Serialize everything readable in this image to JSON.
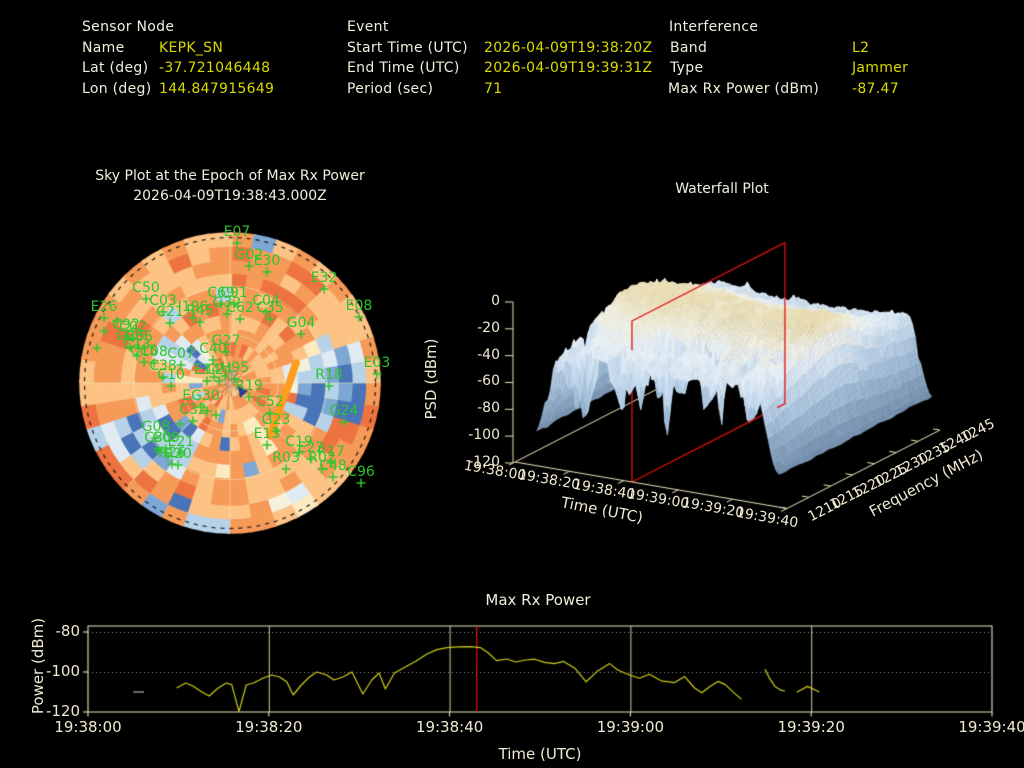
{
  "header": {
    "columns": [
      {
        "title": "Sensor Node",
        "rows": [
          [
            "Name",
            "KEPK_SN"
          ],
          [
            "Lat (deg)",
            "-37.721046448"
          ],
          [
            "Lon (deg)",
            "144.847915649"
          ]
        ]
      },
      {
        "title": "Event",
        "rows": [
          [
            "Start Time (UTC)",
            "2026-04-09T19:38:20Z"
          ],
          [
            "End Time (UTC)",
            "2026-04-09T19:39:31Z"
          ],
          [
            "Period (sec)",
            "71"
          ]
        ]
      },
      {
        "title": "Interference",
        "rows": [
          [
            "Band",
            "L2"
          ],
          [
            "Type",
            "Jammer"
          ],
          [
            "Max Rx Power (dBm)",
            "-87.47"
          ]
        ]
      }
    ]
  },
  "colors": {
    "background": "#000000",
    "label_text": "#f0eedd",
    "value_text": "#d9d900",
    "axis_frame": "#ece4bd",
    "grid_dotted": "#a9a9a9",
    "line_yellow": "#cdcd1c",
    "line_red": "#f01010",
    "satellite_green": "#2ec52e",
    "streak_orange": "#ff9d1e",
    "surface_blue": "#b8d2e8",
    "surface_cream": "#e9ddb4"
  },
  "chart_data": [
    {
      "type": "heatmap",
      "render": "polar-sky-mosaic",
      "title": "Sky Plot at the Epoch of Max Rx Power",
      "subtitle": "2026-04-09T19:38:43.000Z",
      "satellites": [
        {
          "id": "E07",
          "x": 237,
          "y": 243
        },
        {
          "id": "G02",
          "x": 249,
          "y": 266
        },
        {
          "id": "E30",
          "x": 267,
          "y": 272
        },
        {
          "id": "E32",
          "x": 324,
          "y": 289
        },
        {
          "id": "E08",
          "x": 359,
          "y": 317
        },
        {
          "id": "C04",
          "x": 266,
          "y": 312
        },
        {
          "id": "C35",
          "x": 270,
          "y": 319
        },
        {
          "id": "G04",
          "x": 301,
          "y": 334
        },
        {
          "id": "E03",
          "x": 377,
          "y": 374
        },
        {
          "id": "R18",
          "x": 329,
          "y": 386
        },
        {
          "id": "G24",
          "x": 344,
          "y": 422
        },
        {
          "id": "C50",
          "x": 146,
          "y": 299
        },
        {
          "id": "C03",
          "x": 163,
          "y": 312
        },
        {
          "id": "C21",
          "x": 170,
          "y": 323
        },
        {
          "id": "I196",
          "x": 193,
          "y": 318
        },
        {
          "id": "R45",
          "x": 200,
          "y": 322
        },
        {
          "id": "C69",
          "x": 221,
          "y": 304
        },
        {
          "id": "C91",
          "x": 234,
          "y": 304
        },
        {
          "id": "G32",
          "x": 227,
          "y": 314
        },
        {
          "id": "C62",
          "x": 240,
          "y": 319
        },
        {
          "id": "E26",
          "x": 104,
          "y": 318
        },
        {
          "id": "C92",
          "x": 126,
          "y": 336
        },
        {
          "id": "C02",
          "x": 133,
          "y": 338
        },
        {
          "id": "C28",
          "x": 130,
          "y": 347
        },
        {
          "id": "C06",
          "x": 139,
          "y": 348
        },
        {
          "id": "C13",
          "x": 137,
          "y": 356
        },
        {
          "id": "C15",
          "x": 144,
          "y": 362
        },
        {
          "id": "C08",
          "x": 154,
          "y": 363
        },
        {
          "id": "C07",
          "x": 181,
          "y": 365
        },
        {
          "id": "C40",
          "x": 213,
          "y": 360
        },
        {
          "id": "G27",
          "x": 226,
          "y": 352
        },
        {
          "id": "C38",
          "x": 163,
          "y": 377
        },
        {
          "id": "C10",
          "x": 171,
          "y": 386
        },
        {
          "id": "E34",
          "x": 207,
          "y": 381
        },
        {
          "id": "C24",
          "x": 219,
          "y": 381
        },
        {
          "id": "H95",
          "x": 235,
          "y": 379
        },
        {
          "id": "R19",
          "x": 249,
          "y": 397
        },
        {
          "id": "EG30",
          "x": 201,
          "y": 407
        },
        {
          "id": "C32",
          "x": 193,
          "y": 421
        },
        {
          "id": "C52",
          "x": 270,
          "y": 413
        },
        {
          "id": "G23",
          "x": 276,
          "y": 431
        },
        {
          "id": "E13",
          "x": 267,
          "y": 445
        },
        {
          "id": "C19",
          "x": 299,
          "y": 453
        },
        {
          "id": "E22",
          "x": 311,
          "y": 459
        },
        {
          "id": "R17",
          "x": 331,
          "y": 463
        },
        {
          "id": "R03",
          "x": 286,
          "y": 469
        },
        {
          "id": "R02",
          "x": 322,
          "y": 469
        },
        {
          "id": "C48",
          "x": 333,
          "y": 477
        },
        {
          "id": "G08",
          "x": 156,
          "y": 438
        },
        {
          "id": "C30",
          "x": 158,
          "y": 449
        },
        {
          "id": "C09",
          "x": 166,
          "y": 449
        },
        {
          "id": "E21",
          "x": 181,
          "y": 453
        },
        {
          "id": "R26",
          "x": 172,
          "y": 464
        },
        {
          "id": "R20",
          "x": 178,
          "y": 465
        },
        {
          "id": "C96",
          "x": 361,
          "y": 483
        }
      ],
      "extra_markers": [
        [
          207,
          411
        ],
        [
          216,
          415
        ],
        [
          180,
          424
        ],
        [
          160,
          452
        ],
        [
          168,
          456
        ],
        [
          117,
          321
        ],
        [
          104,
          331
        ],
        [
          97,
          348
        ],
        [
          214,
          377
        ],
        [
          225,
          376
        ]
      ],
      "jammer_streak": [
        [
          270,
          436
        ],
        [
          277,
          416
        ],
        [
          283,
          400
        ],
        [
          290,
          381
        ],
        [
          296,
          363
        ]
      ],
      "arrow": [
        243,
        392
      ],
      "grid_rings": [
        0.333,
        0.667
      ],
      "mosaic": {
        "sectors": 40,
        "rings": 11,
        "seed": 11
      }
    },
    {
      "type": "heatmap",
      "render": "3d-surface",
      "title": "Waterfall Plot",
      "xlabel": "Time (UTC)",
      "ylabel": "Frequency (MHz)",
      "zlabel": "PSD (dBm)",
      "x_ticks": [
        "19:38:00",
        "19:38:20",
        "19:38:40",
        "19:39:00",
        "19:39:20",
        "19:39:40"
      ],
      "x_tick_sec": [
        0,
        20,
        40,
        60,
        80,
        100
      ],
      "y_ticks": [
        1210,
        1215,
        1220,
        1225,
        1230,
        1235,
        1240,
        1245
      ],
      "z_ticks": [
        0,
        -20,
        -40,
        -60,
        -80,
        -100,
        -120
      ],
      "z_range": [
        -120,
        0
      ],
      "slice_time_sec": 43,
      "surface": {
        "t_range": [
          8,
          97
        ],
        "psd_crest": -13,
        "psd_floor": -96,
        "center_freq": 1226,
        "seed": 5
      }
    },
    {
      "type": "line",
      "title": "Max Rx Power",
      "xlabel": "Time (UTC)",
      "ylabel": "Power (dBm)",
      "ylim": [
        -120,
        -77
      ],
      "yticks": [
        -80,
        -100,
        -120
      ],
      "xtick_sec": [
        0,
        20,
        40,
        60,
        80,
        100
      ],
      "xtick_labels": [
        "19:38:00",
        "19:38:20",
        "19:38:40",
        "19:39:00",
        "19:39:20",
        "19:39:40"
      ],
      "red_line_sec": 43,
      "gray_segment": [
        [
          5,
          -110
        ],
        [
          6.2,
          -110
        ]
      ],
      "segments": [
        [
          [
            9.8,
            -108
          ],
          [
            10.8,
            -105.5
          ],
          [
            11.6,
            -107
          ],
          [
            12.6,
            -110
          ],
          [
            13.4,
            -112
          ],
          [
            14.4,
            -108
          ],
          [
            15.3,
            -105.5
          ],
          [
            15.9,
            -106.3
          ],
          [
            16.7,
            -119.8
          ],
          [
            17.5,
            -106.5
          ],
          [
            18.3,
            -105.5
          ],
          [
            19.4,
            -103
          ],
          [
            20.3,
            -101.5
          ],
          [
            21.2,
            -102.5
          ],
          [
            22,
            -105
          ],
          [
            22.7,
            -111.5
          ],
          [
            23.6,
            -106.5
          ],
          [
            24.5,
            -102.5
          ],
          [
            25.3,
            -100
          ],
          [
            26.4,
            -101.5
          ],
          [
            27.2,
            -104
          ],
          [
            28.2,
            -102.5
          ],
          [
            29.2,
            -100
          ],
          [
            30.4,
            -111
          ],
          [
            31.4,
            -104
          ],
          [
            32.2,
            -100.5
          ],
          [
            32.9,
            -108.5
          ],
          [
            33.9,
            -100.5
          ],
          [
            34.9,
            -98
          ],
          [
            36.3,
            -94.5
          ],
          [
            37.5,
            -91
          ],
          [
            38.6,
            -88.8
          ],
          [
            39.7,
            -87.8
          ],
          [
            41,
            -87.4
          ],
          [
            42.3,
            -87.3
          ],
          [
            43.4,
            -87.8
          ],
          [
            44.3,
            -90.5
          ],
          [
            45.2,
            -94.3
          ],
          [
            46.3,
            -93.5
          ],
          [
            47.3,
            -95
          ],
          [
            48.4,
            -94
          ],
          [
            49.4,
            -93.6
          ],
          [
            50.5,
            -95.2
          ],
          [
            51.6,
            -95.8
          ],
          [
            52.6,
            -94.7
          ],
          [
            53.9,
            -98.3
          ],
          [
            55.1,
            -104.9
          ],
          [
            56.3,
            -99.8
          ],
          [
            57.7,
            -95.8
          ],
          [
            58.6,
            -99
          ],
          [
            59.9,
            -101.5
          ],
          [
            61,
            -103.1
          ],
          [
            62.1,
            -101.1
          ],
          [
            63.4,
            -104.4
          ],
          [
            64.9,
            -105.3
          ],
          [
            66,
            -102.3
          ],
          [
            67.1,
            -108
          ],
          [
            67.9,
            -110.4
          ],
          [
            68.8,
            -107.3
          ],
          [
            69.7,
            -104.7
          ],
          [
            70.5,
            -106.3
          ],
          [
            71.4,
            -110.2
          ],
          [
            72.3,
            -113.7
          ]
        ],
        [
          [
            74.9,
            -98.6
          ],
          [
            75.4,
            -103.2
          ],
          [
            76,
            -107.3
          ],
          [
            76.7,
            -109.2
          ],
          [
            77.1,
            -109.5
          ]
        ],
        [
          [
            78.4,
            -110.1
          ],
          [
            79.6,
            -107.2
          ],
          [
            80.9,
            -110
          ]
        ]
      ]
    }
  ]
}
